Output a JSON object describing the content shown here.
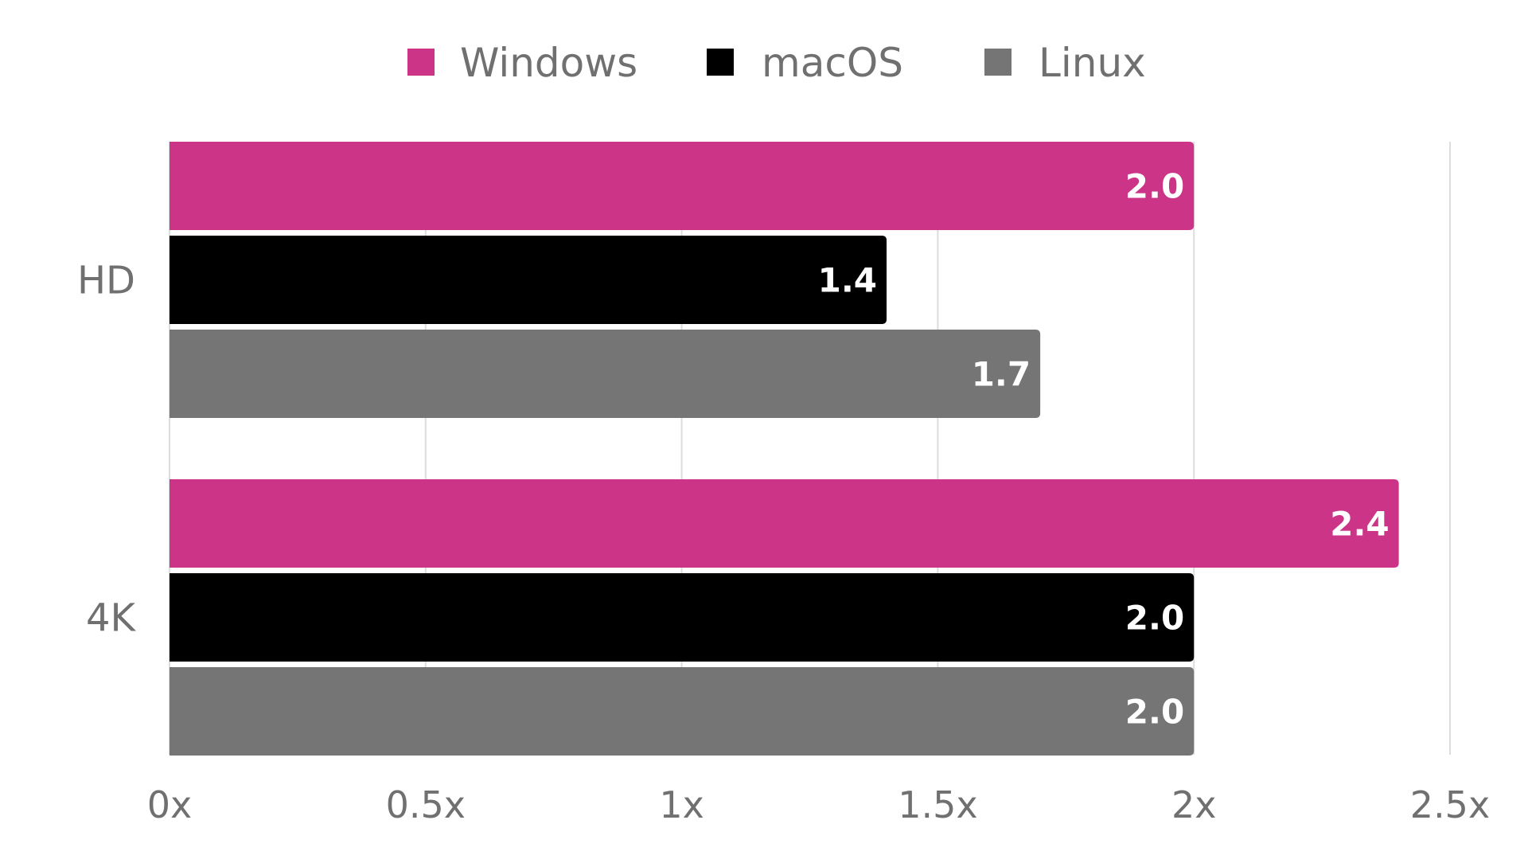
{
  "chart_data": {
    "type": "bar",
    "orientation": "horizontal",
    "title": "",
    "xlabel": "",
    "ylabel": "",
    "categories": [
      "HD",
      "4K"
    ],
    "series": [
      {
        "name": "Windows",
        "color": "#cc3587",
        "values": [
          2.0,
          2.4
        ],
        "labels": [
          "2.0",
          "2.4"
        ]
      },
      {
        "name": "macOS",
        "color": "#000000",
        "values": [
          1.4,
          2.0
        ],
        "labels": [
          "1.4",
          "2.0"
        ]
      },
      {
        "name": "Linux",
        "color": "#757575",
        "values": [
          1.7,
          2.0
        ],
        "labels": [
          "1.7",
          "2.0"
        ]
      }
    ],
    "xlim": [
      0,
      2.5
    ],
    "x_ticks": [
      0,
      0.5,
      1,
      1.5,
      2,
      2.5
    ],
    "x_tick_labels": [
      "0x",
      "0.5x",
      "1x",
      "1.5x",
      "2x",
      "2.5x"
    ],
    "grid": true,
    "legend_position": "top-center"
  }
}
